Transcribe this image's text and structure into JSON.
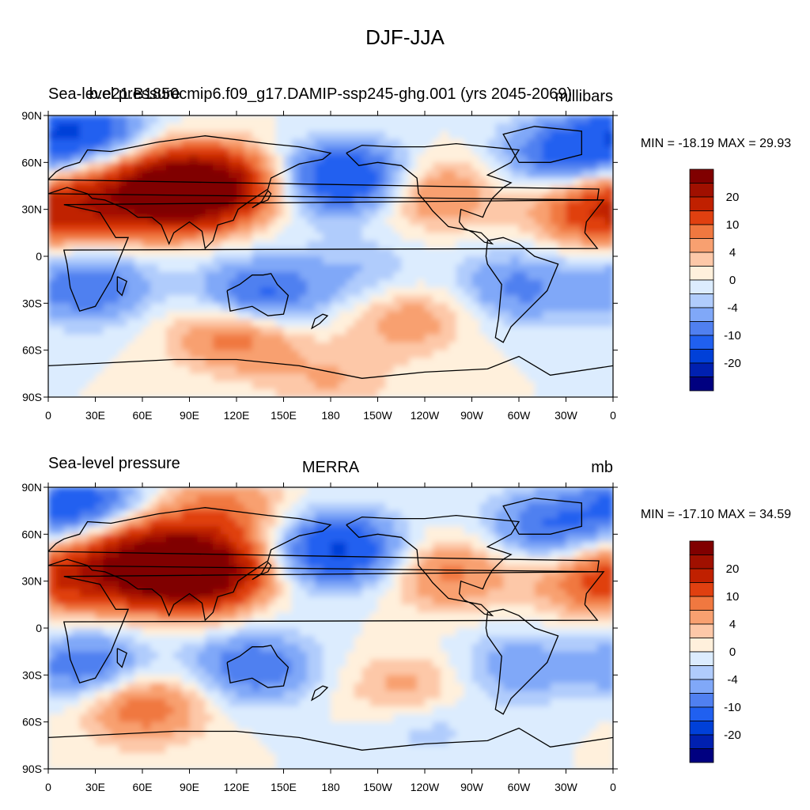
{
  "title": "DJF-JJA",
  "chart_data": [
    {
      "type": "heatmap",
      "left_label": "Sea-level pressure",
      "center_label": "b.e21.B1850cmip6.f09_g17.DAMIP-ssp245-ghg.001 (yrs 2045-2069)",
      "units": "millibars",
      "stats": "MIN = -18.19 MAX =  29.93",
      "min": -18.19,
      "max": 29.93,
      "y_ticks": [
        "90N",
        "60N",
        "30N",
        "0",
        "30S",
        "60S",
        "90S"
      ],
      "x_ticks": [
        "0",
        "30E",
        "60E",
        "90E",
        "120E",
        "150E",
        "180",
        "150W",
        "120W",
        "90W",
        "60W",
        "30W",
        "0"
      ],
      "colorbar_labels": [
        "20",
        "10",
        "4",
        "0",
        "-4",
        "-10",
        "-20"
      ],
      "features": [
        {
          "lon": 100,
          "lat": 45,
          "value": 26
        },
        {
          "lon": 80,
          "lat": 40,
          "value": 18
        },
        {
          "lon": 40,
          "lat": 35,
          "value": 14
        },
        {
          "lon": 350,
          "lat": 30,
          "value": 14
        },
        {
          "lon": 245,
          "lat": 40,
          "value": 8
        },
        {
          "lon": 120,
          "lat": -50,
          "value": 10
        },
        {
          "lon": 230,
          "lat": -40,
          "value": 6
        },
        {
          "lon": 190,
          "lat": 50,
          "value": -16
        },
        {
          "lon": 20,
          "lat": 80,
          "value": -14
        },
        {
          "lon": 330,
          "lat": 65,
          "value": -12
        },
        {
          "lon": 135,
          "lat": -25,
          "value": -12
        },
        {
          "lon": 25,
          "lat": -20,
          "value": -10
        },
        {
          "lon": 300,
          "lat": -20,
          "value": -8
        },
        {
          "lon": 200,
          "lat": -10,
          "value": -4
        },
        {
          "lon": 180,
          "lat": -80,
          "value": 4
        }
      ]
    },
    {
      "type": "heatmap",
      "left_label": "Sea-level pressure",
      "center_label": "MERRA",
      "units": "mb",
      "stats": "MIN = -17.10 MAX =  34.59",
      "min": -17.1,
      "max": 34.59,
      "y_ticks": [
        "90N",
        "60N",
        "30N",
        "0",
        "30S",
        "60S",
        "90S"
      ],
      "x_ticks": [
        "0",
        "30E",
        "60E",
        "90E",
        "120E",
        "150E",
        "180",
        "150W",
        "120W",
        "90W",
        "60W",
        "30W",
        "0"
      ],
      "colorbar_labels": [
        "20",
        "10",
        "4",
        "0",
        "-4",
        "-10",
        "-20"
      ],
      "features": [
        {
          "lon": 95,
          "lat": 35,
          "value": 30
        },
        {
          "lon": 70,
          "lat": 45,
          "value": 18
        },
        {
          "lon": 40,
          "lat": 35,
          "value": 14
        },
        {
          "lon": 350,
          "lat": 30,
          "value": 10
        },
        {
          "lon": 110,
          "lat": 75,
          "value": 8
        },
        {
          "lon": 255,
          "lat": 35,
          "value": 8
        },
        {
          "lon": 60,
          "lat": -50,
          "value": 10
        },
        {
          "lon": 230,
          "lat": -40,
          "value": 6
        },
        {
          "lon": 185,
          "lat": 50,
          "value": -16
        },
        {
          "lon": 20,
          "lat": 80,
          "value": -12
        },
        {
          "lon": 320,
          "lat": 65,
          "value": -10
        },
        {
          "lon": 130,
          "lat": -25,
          "value": -10
        },
        {
          "lon": 25,
          "lat": -25,
          "value": -10
        },
        {
          "lon": 300,
          "lat": -25,
          "value": -6
        },
        {
          "lon": 240,
          "lat": -60,
          "value": -4
        }
      ]
    }
  ],
  "colors": [
    "#000080",
    "#0020b0",
    "#0040d8",
    "#2060f0",
    "#5080f0",
    "#80a8f8",
    "#b0ccfc",
    "#dcecfe",
    "#fff0dc",
    "#fdc8a8",
    "#f8a070",
    "#f07840",
    "#e04010",
    "#c02000",
    "#a01000",
    "#800000"
  ]
}
